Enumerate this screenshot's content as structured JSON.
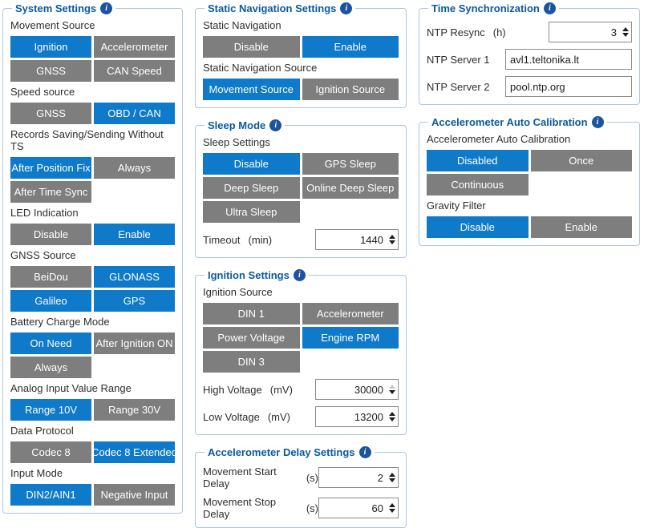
{
  "colors": {
    "accent_blue": "#0e7ac9",
    "inactive_gray": "#7e7e7e",
    "panel_title_blue": "#0a5aa0",
    "panel_border_blue": "#abc6e1",
    "info_icon_blue": "#1a53a0"
  },
  "icons": {
    "info": "i"
  },
  "columns": [
    {
      "panels": [
        {
          "title": "System Settings",
          "blocks": [
            {
              "type": "toggle-group",
              "label": "Movement Source",
              "options": [
                {
                  "label": "Ignition",
                  "selected": true
                },
                {
                  "label": "Accelerometer",
                  "selected": false
                },
                {
                  "label": "GNSS",
                  "selected": false
                },
                {
                  "label": "CAN Speed",
                  "selected": false
                }
              ]
            },
            {
              "type": "toggle-group",
              "label": "Speed source",
              "options": [
                {
                  "label": "GNSS",
                  "selected": false
                },
                {
                  "label": "OBD / CAN",
                  "selected": true
                }
              ]
            },
            {
              "type": "toggle-group",
              "label": "Records Saving/Sending Without TS",
              "options": [
                {
                  "label": "After Position Fix",
                  "selected": true
                },
                {
                  "label": "Always",
                  "selected": false
                },
                {
                  "label": "After Time Sync",
                  "selected": false
                }
              ]
            },
            {
              "type": "toggle-group",
              "label": "LED Indication",
              "options": [
                {
                  "label": "Disable",
                  "selected": false
                },
                {
                  "label": "Enable",
                  "selected": true
                }
              ]
            },
            {
              "type": "toggle-group",
              "label": "GNSS Source",
              "options": [
                {
                  "label": "BeiDou",
                  "selected": false
                },
                {
                  "label": "GLONASS",
                  "selected": true
                },
                {
                  "label": "Galileo",
                  "selected": true
                },
                {
                  "label": "GPS",
                  "selected": true
                }
              ]
            },
            {
              "type": "toggle-group",
              "label": "Battery Charge Mode",
              "options": [
                {
                  "label": "On Need",
                  "selected": true
                },
                {
                  "label": "After Ignition ON",
                  "selected": false
                },
                {
                  "label": "Always",
                  "selected": false
                }
              ]
            },
            {
              "type": "toggle-group",
              "label": "Analog Input Value Range",
              "options": [
                {
                  "label": "Range 10V",
                  "selected": true
                },
                {
                  "label": "Range 30V",
                  "selected": false
                }
              ]
            },
            {
              "type": "toggle-group",
              "label": "Data Protocol",
              "options": [
                {
                  "label": "Codec 8",
                  "selected": false
                },
                {
                  "label": "Codec 8 Extended",
                  "selected": true
                }
              ]
            },
            {
              "type": "toggle-group",
              "label": "Input Mode",
              "options": [
                {
                  "label": "DIN2/AIN1",
                  "selected": true
                },
                {
                  "label": "Negative Input",
                  "selected": false
                }
              ]
            }
          ]
        }
      ]
    },
    {
      "panels": [
        {
          "title": "Static Navigation Settings",
          "blocks": [
            {
              "type": "toggle-group",
              "label": "Static Navigation",
              "options": [
                {
                  "label": "Disable",
                  "selected": false
                },
                {
                  "label": "Enable",
                  "selected": true
                }
              ]
            },
            {
              "type": "toggle-group",
              "label": "Static Navigation Source",
              "options": [
                {
                  "label": "Movement Source",
                  "selected": true
                },
                {
                  "label": "Ignition Source",
                  "selected": false
                }
              ]
            }
          ]
        },
        {
          "title": "Sleep Mode",
          "blocks": [
            {
              "type": "toggle-group",
              "label": "Sleep Settings",
              "options": [
                {
                  "label": "Disable",
                  "selected": true
                },
                {
                  "label": "GPS Sleep",
                  "selected": false
                },
                {
                  "label": "Deep Sleep",
                  "selected": false
                },
                {
                  "label": "Online Deep Sleep",
                  "selected": false
                },
                {
                  "label": "Ultra Sleep",
                  "selected": false
                }
              ]
            },
            {
              "type": "field",
              "label": "Timeout",
              "unit": "(min)",
              "value": "1440",
              "input": "number",
              "input_width": 104
            }
          ]
        },
        {
          "title": "Ignition Settings",
          "blocks": [
            {
              "type": "toggle-group",
              "label": "Ignition Source",
              "options": [
                {
                  "label": "DIN 1",
                  "selected": false
                },
                {
                  "label": "Accelerometer",
                  "selected": false
                },
                {
                  "label": "Power Voltage",
                  "selected": false
                },
                {
                  "label": "Engine RPM",
                  "selected": true
                },
                {
                  "label": "DIN 3",
                  "selected": false
                }
              ]
            },
            {
              "type": "field",
              "label": "High Voltage",
              "unit": "(mV)",
              "value": "30000",
              "input": "number",
              "input_width": 104,
              "up_disabled": true
            },
            {
              "type": "field",
              "label": "Low Voltage",
              "unit": "(mV)",
              "value": "13200",
              "input": "number",
              "input_width": 104
            }
          ]
        },
        {
          "title": "Accelerometer Delay Settings",
          "blocks": [
            {
              "type": "field",
              "label": "Movement Start Delay",
              "unit": "(s)",
              "value": "2",
              "input": "number",
              "input_width": 100
            },
            {
              "type": "field",
              "label": "Movement Stop Delay",
              "unit": "(s)",
              "value": "60",
              "input": "number",
              "input_width": 100
            }
          ]
        }
      ]
    },
    {
      "panels": [
        {
          "title": "Time Synchronization",
          "blocks": [
            {
              "type": "field",
              "label": "NTP Resync",
              "unit": "(h)",
              "value": "3",
              "input": "number",
              "input_width": 104
            },
            {
              "type": "field",
              "label": "NTP Server 1",
              "value": "avl1.teltonika.lt",
              "input": "text",
              "input_width": 158
            },
            {
              "type": "field",
              "label": "NTP Server 2",
              "value": "pool.ntp.org",
              "input": "text",
              "input_width": 158
            }
          ]
        },
        {
          "title": "Accelerometer Auto Calibration",
          "blocks": [
            {
              "type": "toggle-group",
              "label": "Accelerometer Auto Calibration",
              "options": [
                {
                  "label": "Disabled",
                  "selected": true
                },
                {
                  "label": "Once",
                  "selected": false
                },
                {
                  "label": "Continuous",
                  "selected": false
                }
              ]
            },
            {
              "type": "toggle-group",
              "label": "Gravity Filter",
              "options": [
                {
                  "label": "Disable",
                  "selected": true
                },
                {
                  "label": "Enable",
                  "selected": false
                }
              ]
            }
          ]
        }
      ]
    }
  ]
}
